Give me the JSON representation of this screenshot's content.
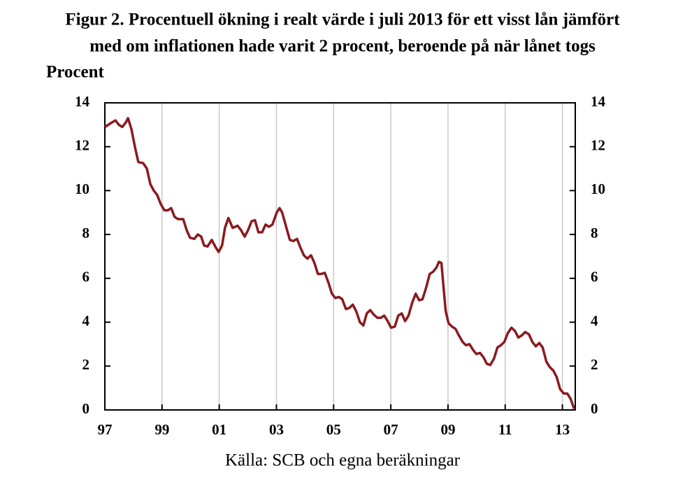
{
  "chart_data": {
    "type": "line",
    "title": [
      "Figur 2. Procentuell ökning i realt värde i juli 2013 för ett visst lån jämfört",
      "med om inflationen hade varit 2 procent, beroende på när lånet togs"
    ],
    "ylabel": "Procent",
    "source": "Källa: SCB och egna beräkningar",
    "xlim": [
      1997,
      2013.45
    ],
    "xticks": [
      {
        "value": 1997,
        "label": "97"
      },
      {
        "value": 1999,
        "label": "99"
      },
      {
        "value": 2001,
        "label": "01"
      },
      {
        "value": 2003,
        "label": "03"
      },
      {
        "value": 2005,
        "label": "05"
      },
      {
        "value": 2007,
        "label": "07"
      },
      {
        "value": 2009,
        "label": "09"
      },
      {
        "value": 2011,
        "label": "11"
      },
      {
        "value": 2013,
        "label": "13"
      }
    ],
    "ylim": [
      0,
      14
    ],
    "yticks": [
      0,
      2,
      4,
      6,
      8,
      10,
      12,
      14
    ],
    "y2lim": [
      0,
      14
    ],
    "y2ticks": [
      0,
      2,
      4,
      6,
      8,
      10,
      12,
      14
    ],
    "xgrid": true,
    "x": [
      1997.0,
      1997.24,
      1997.37,
      1997.49,
      1997.61,
      1997.73,
      1997.81,
      1997.93,
      1998.05,
      1998.17,
      1998.34,
      1998.47,
      1998.59,
      1998.71,
      1998.83,
      1998.95,
      1999.08,
      1999.2,
      1999.32,
      1999.44,
      1999.56,
      1999.74,
      1999.86,
      1999.98,
      2000.13,
      2000.25,
      2000.37,
      2000.47,
      2000.59,
      2000.74,
      2000.86,
      2000.98,
      2001.1,
      2001.2,
      2001.32,
      2001.47,
      2001.64,
      2001.76,
      2001.89,
      2002.01,
      2002.13,
      2002.25,
      2002.37,
      2002.5,
      2002.62,
      2002.74,
      2002.86,
      2003.01,
      2003.11,
      2003.2,
      2003.35,
      2003.47,
      2003.6,
      2003.72,
      2003.84,
      2003.96,
      2004.08,
      2004.21,
      2004.33,
      2004.45,
      2004.57,
      2004.69,
      2004.82,
      2004.94,
      2005.06,
      2005.18,
      2005.3,
      2005.43,
      2005.55,
      2005.67,
      2005.79,
      2005.92,
      2006.04,
      2006.16,
      2006.28,
      2006.4,
      2006.53,
      2006.65,
      2006.77,
      2006.89,
      2007.01,
      2007.14,
      2007.26,
      2007.38,
      2007.5,
      2007.62,
      2007.75,
      2007.87,
      2007.99,
      2008.11,
      2008.24,
      2008.36,
      2008.48,
      2008.6,
      2008.68,
      2008.77,
      2008.85,
      2008.92,
      2009.02,
      2009.14,
      2009.26,
      2009.38,
      2009.51,
      2009.63,
      2009.75,
      2009.87,
      2009.99,
      2010.12,
      2010.24,
      2010.36,
      2010.48,
      2010.61,
      2010.73,
      2010.85,
      2010.97,
      2011.09,
      2011.22,
      2011.34,
      2011.46,
      2011.58,
      2011.7,
      2011.83,
      2011.95,
      2012.07,
      2012.19,
      2012.31,
      2012.44,
      2012.56,
      2012.68,
      2012.8,
      2012.92,
      2013.05,
      2013.17,
      2013.29,
      2013.41
    ],
    "series": [
      {
        "color": "#8b1a1f",
        "values": [
          12.9,
          13.1,
          13.2,
          13.0,
          12.9,
          13.1,
          13.3,
          12.8,
          12.0,
          11.3,
          11.25,
          11.0,
          10.3,
          10.0,
          9.8,
          9.4,
          9.1,
          9.1,
          9.2,
          8.8,
          8.7,
          8.7,
          8.2,
          7.85,
          7.8,
          8.0,
          7.9,
          7.5,
          7.45,
          7.75,
          7.45,
          7.2,
          7.5,
          8.3,
          8.75,
          8.3,
          8.4,
          8.2,
          7.9,
          8.2,
          8.6,
          8.65,
          8.1,
          8.1,
          8.45,
          8.35,
          8.45,
          9.0,
          9.2,
          9.0,
          8.3,
          7.75,
          7.7,
          7.8,
          7.4,
          7.05,
          6.9,
          7.05,
          6.7,
          6.2,
          6.2,
          6.25,
          5.8,
          5.3,
          5.1,
          5.15,
          5.05,
          4.6,
          4.65,
          4.8,
          4.5,
          4.0,
          3.85,
          4.4,
          4.55,
          4.35,
          4.2,
          4.2,
          4.3,
          4.05,
          3.75,
          3.8,
          4.3,
          4.4,
          4.05,
          4.3,
          4.9,
          5.3,
          5.0,
          5.05,
          5.6,
          6.2,
          6.3,
          6.5,
          6.75,
          6.7,
          5.5,
          4.5,
          3.95,
          3.8,
          3.7,
          3.4,
          3.1,
          2.95,
          3.0,
          2.75,
          2.55,
          2.6,
          2.4,
          2.1,
          2.05,
          2.35,
          2.85,
          2.95,
          3.1,
          3.5,
          3.75,
          3.6,
          3.3,
          3.4,
          3.55,
          3.45,
          3.1,
          2.9,
          3.05,
          2.85,
          2.2,
          1.95,
          1.8,
          1.5,
          0.95,
          0.75,
          0.75,
          0.5,
          0.05
        ]
      }
    ]
  }
}
